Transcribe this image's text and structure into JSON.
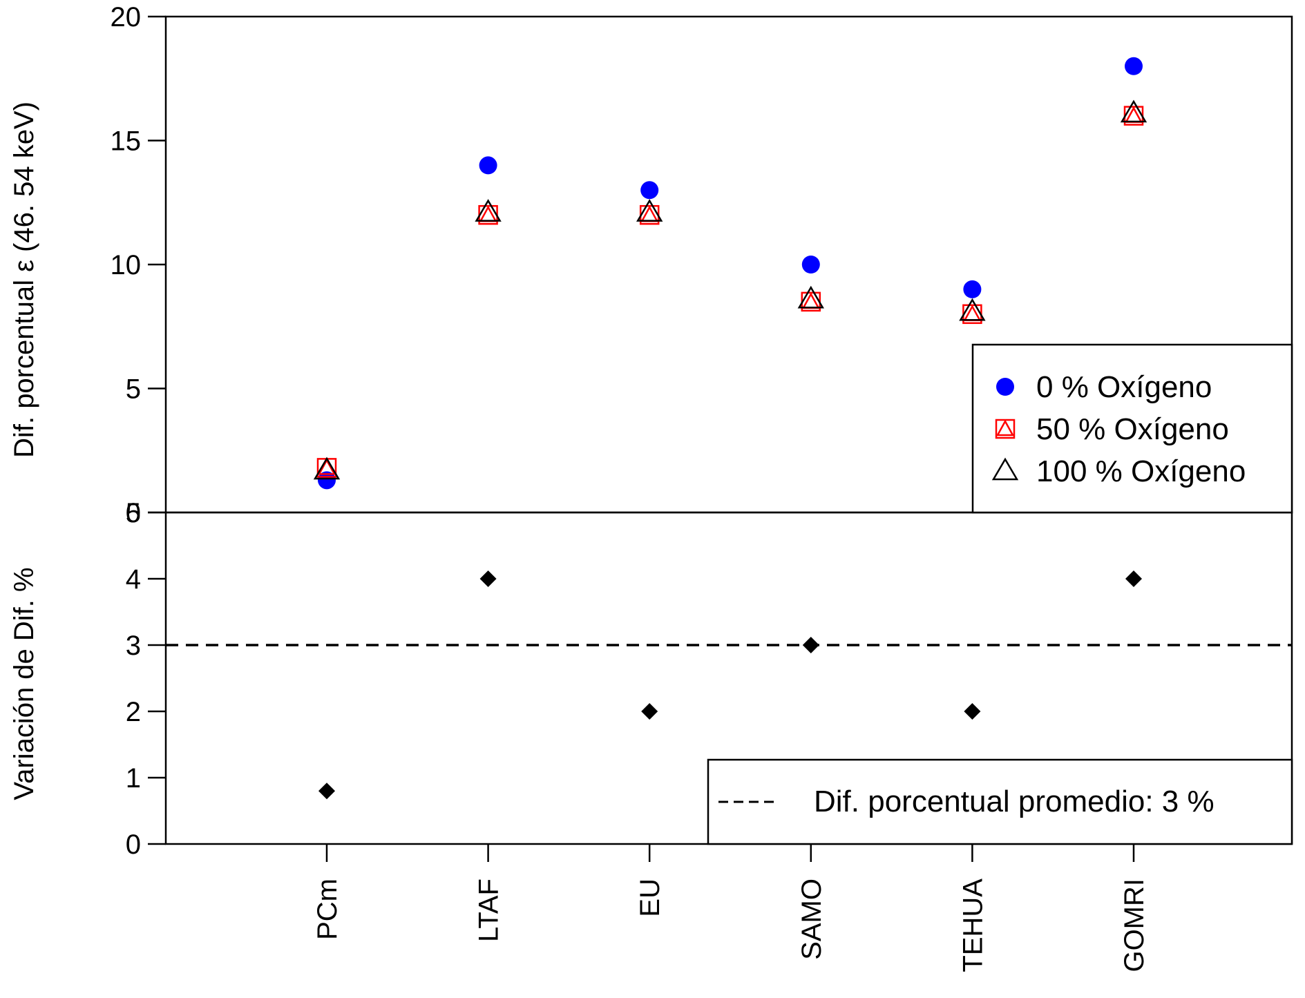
{
  "chart_data": [
    {
      "type": "scatter",
      "ylabel": "Dif. porcentual ε (46. 54 keV)",
      "ylim": [
        0,
        20
      ],
      "yticks": [
        0,
        5,
        10,
        15,
        20
      ],
      "categories": [
        "PCm",
        "LTAF",
        "EU",
        "SAMO",
        "TEHUA",
        "GOMRI"
      ],
      "series": [
        {
          "name": "0 % Oxígeno",
          "marker": "filled-circle",
          "color": "#0000ff",
          "values": [
            1.3,
            14,
            13,
            10,
            9,
            18
          ]
        },
        {
          "name": "50 % Oxígeno",
          "marker": "square-with-triangle",
          "color": "#ff0000",
          "values": [
            1.8,
            12,
            12,
            8.5,
            8,
            16
          ]
        },
        {
          "name": "100 % Oxígeno",
          "marker": "open-triangle",
          "color": "#000000",
          "values": [
            1.7,
            12.1,
            12.1,
            8.6,
            8.1,
            16.1
          ]
        }
      ],
      "legend_position": "bottom-right",
      "grid": false
    },
    {
      "type": "scatter",
      "ylabel": "Variación de Dif. %",
      "ylim": [
        0,
        5
      ],
      "yticks": [
        0,
        1,
        2,
        3,
        4,
        5
      ],
      "categories": [
        "PCm",
        "LTAF",
        "EU",
        "SAMO",
        "TEHUA",
        "GOMRI"
      ],
      "series": [
        {
          "name": "",
          "marker": "filled-diamond",
          "color": "#000000",
          "values": [
            0.8,
            4,
            2,
            3,
            2,
            4
          ]
        }
      ],
      "reference_line": {
        "y": 3,
        "style": "dashed",
        "label": "Dif. porcentual promedio: 3 %"
      },
      "legend_position": "bottom-right",
      "grid": false
    }
  ]
}
